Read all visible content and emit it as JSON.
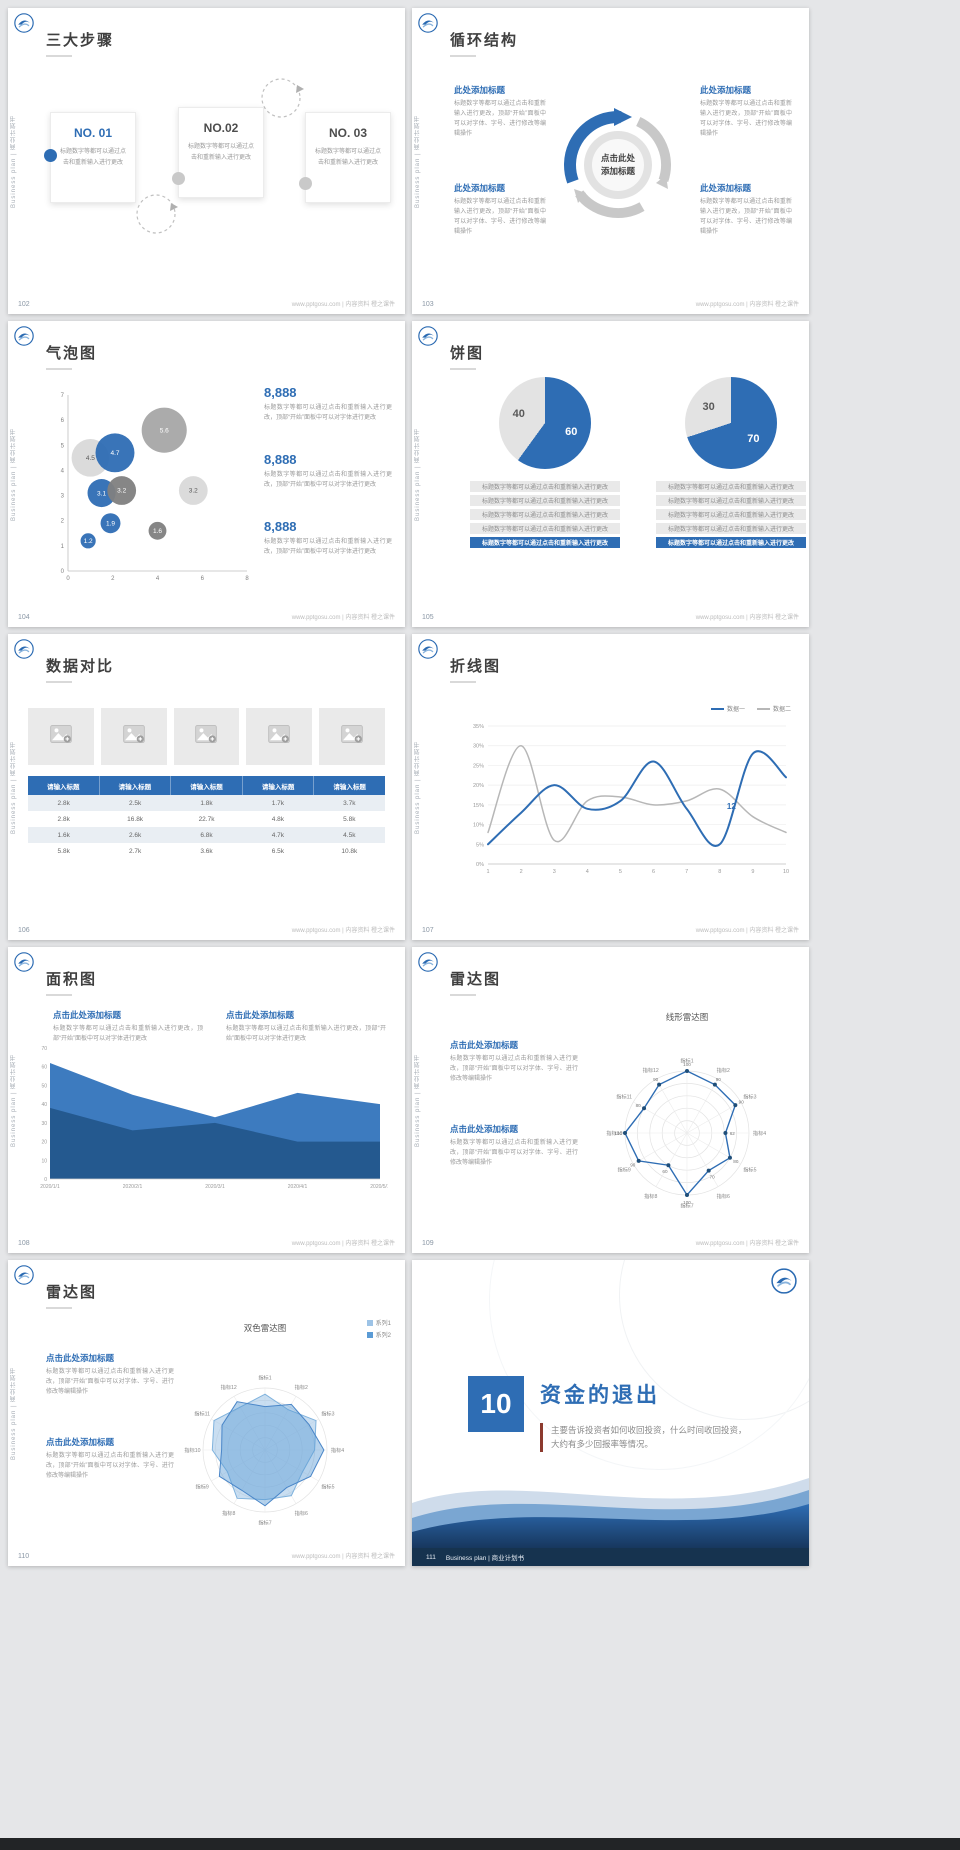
{
  "page": {
    "background": "#e5e6e8",
    "accent": "#2e6db4"
  },
  "common": {
    "side_text": "Business plan | 商业计划书",
    "footer_site": "www.pptgosu.com | 内容资料 橙之课件",
    "filler_short": "标题数字等都可以通过点击和重新输入进行更改",
    "filler_mid": "标题数字等都可以通过点击和重新输入进行更改，顶部“开始”面板中可以对字体进行更改",
    "filler_long": "标题数字等都可以通过点击和重新输入进行更改，顶部“开始”面板中可以对字体、字号、进行修改等编辑操作",
    "click_heading": "点击此处添加标题",
    "add_heading": "此处添加标题",
    "center_line1": "点击此处",
    "center_line2": "添加标题"
  },
  "slides": {
    "s102": {
      "num": "102",
      "title": "三大步骤",
      "steps": [
        "NO. 01",
        "NO.02",
        "NO. 03"
      ]
    },
    "s103": {
      "num": "103",
      "title": "循环结构"
    },
    "s104": {
      "num": "104",
      "title": "气泡图",
      "values": [
        "8,888",
        "8,888",
        "8,888"
      ]
    },
    "s105": {
      "num": "105",
      "title": "饼图"
    },
    "s106": {
      "num": "106",
      "title": "数据对比"
    },
    "s107": {
      "num": "107",
      "title": "折线图"
    },
    "s108": {
      "num": "108",
      "title": "面积图"
    },
    "s109": {
      "num": "109",
      "title": "雷达图",
      "chart_title": "线形雷达图"
    },
    "s110": {
      "num": "110",
      "title": "雷达图",
      "chart_title": "双色雷达图"
    },
    "s111": {
      "num": "111",
      "title_number": "10",
      "title": "资金的退出",
      "body": "主要告诉投资者如何收回投资，什么时间收回投资，大约有多少回报率等情况。",
      "footer": "Business plan | 商业计划书"
    }
  },
  "chart_data": {
    "bubble": {
      "type": "scatter",
      "xlim": [
        0,
        8
      ],
      "ylim": [
        0,
        7
      ],
      "xticks": [
        0,
        2,
        4,
        6,
        8
      ],
      "yticks": [
        0,
        1,
        2,
        3,
        4,
        5,
        6,
        7
      ],
      "points": [
        {
          "x": 1.0,
          "y": 4.5,
          "value": 4.5,
          "color": "#d9d9d9",
          "label_color": "#595959"
        },
        {
          "x": 2.1,
          "y": 4.7,
          "value": 4.7,
          "color": "#2e6db4",
          "label_color": "#ffffff"
        },
        {
          "x": 4.3,
          "y": 5.6,
          "value": 5.6,
          "color": "#a6a6a6",
          "label_color": "#ffffff"
        },
        {
          "x": 1.5,
          "y": 3.1,
          "value": 3.1,
          "color": "#2e6db4",
          "label_color": "#ffffff"
        },
        {
          "x": 2.4,
          "y": 3.2,
          "value": 3.2,
          "color": "#7f7f7f",
          "label_color": "#ffffff"
        },
        {
          "x": 5.6,
          "y": 3.2,
          "value": 3.2,
          "color": "#d9d9d9",
          "label_color": "#595959"
        },
        {
          "x": 1.9,
          "y": 1.9,
          "value": 1.9,
          "color": "#2e6db4",
          "label_color": "#ffffff"
        },
        {
          "x": 0.9,
          "y": 1.2,
          "value": 1.2,
          "color": "#2e6db4",
          "label_color": "#ffffff"
        },
        {
          "x": 4.0,
          "y": 1.6,
          "value": 1.6,
          "color": "#7f7f7f",
          "label_color": "#ffffff"
        }
      ]
    },
    "pies": [
      {
        "type": "pie",
        "slices": [
          {
            "label": "60",
            "value": 60,
            "color": "#2e6db4"
          },
          {
            "label": "40",
            "value": 40,
            "color": "#e3e3e3"
          }
        ]
      },
      {
        "type": "pie",
        "slices": [
          {
            "label": "70",
            "value": 70,
            "color": "#2e6db4"
          },
          {
            "label": "30",
            "value": 30,
            "color": "#e3e3e3"
          }
        ]
      }
    ],
    "pie_rows": {
      "text": "标题数字等都可以通过点击和重新输入进行更改",
      "styles": [
        "gray",
        "gray",
        "gray",
        "gray",
        "blue"
      ]
    },
    "table": {
      "type": "table",
      "headers": [
        "请输入标题",
        "请输入标题",
        "请输入标题",
        "请输入标题",
        "请输入标题"
      ],
      "rows": [
        [
          "2.8k",
          "2.5k",
          "1.8k",
          "1.7k",
          "3.7k"
        ],
        [
          "2.8k",
          "16.8k",
          "22.7k",
          "4.8k",
          "5.8k"
        ],
        [
          "1.6k",
          "2.6k",
          "6.8k",
          "4.7k",
          "4.5k"
        ],
        [
          "5.8k",
          "2.7k",
          "3.6k",
          "6.5k",
          "10.8k"
        ]
      ]
    },
    "line": {
      "type": "line",
      "x": [
        1,
        2,
        3,
        4,
        5,
        6,
        7,
        8,
        9,
        10
      ],
      "ylim": [
        0,
        35
      ],
      "yticks": [
        "0%",
        "5%",
        "10%",
        "15%",
        "20%",
        "25%",
        "30%",
        "35%"
      ],
      "series": [
        {
          "name": "数据一",
          "color": "#2e6db4",
          "width": 2,
          "values": [
            5,
            13,
            20,
            14,
            16,
            26,
            14,
            5,
            28,
            22
          ]
        },
        {
          "name": "数据二",
          "color": "#b7b7b7",
          "width": 1.5,
          "values": [
            8,
            30,
            6,
            16,
            17,
            15,
            16,
            19,
            12,
            8
          ]
        }
      ],
      "annotation": {
        "x": 8.35,
        "y": 14,
        "text": "12",
        "color": "#2e6db4"
      }
    },
    "area": {
      "type": "area",
      "categories": [
        "2020/1/1",
        "2020/2/1",
        "2020/3/1",
        "2020/4/1",
        "2020/5/1"
      ],
      "ylim": [
        0,
        70
      ],
      "yticks": [
        0,
        10,
        20,
        30,
        40,
        50,
        60,
        70
      ],
      "series": [
        {
          "color": "#24598f",
          "values": [
            38,
            26,
            30,
            20,
            20
          ]
        },
        {
          "color": "#3d7bbf",
          "values": [
            62,
            45,
            33,
            46,
            40
          ]
        }
      ]
    },
    "radar_line": {
      "type": "radar",
      "max": 100,
      "labels": [
        "指标1",
        "指标2",
        "指标3",
        "指标4",
        "指标5",
        "指标6",
        "指标7",
        "指标8",
        "指标9",
        "指标10",
        "指标11",
        "指标12"
      ],
      "series": [
        {
          "color": "#2e6db4",
          "dots": true,
          "show_values": true,
          "values": [
            100,
            90,
            90,
            62,
            80,
            70,
            100,
            60,
            90,
            100,
            80,
            90
          ]
        }
      ]
    },
    "radar_fill": {
      "type": "radar",
      "max": 100,
      "labels": [
        "指标1",
        "指标2",
        "指标3",
        "指标4",
        "指标5",
        "指标6",
        "指标7",
        "指标8",
        "指标9",
        "指标10",
        "指标11",
        "指标12"
      ],
      "legend": [
        {
          "name": "系列1",
          "color": "#9dc3e6"
        },
        {
          "name": "系列2",
          "color": "#5b9bd5"
        }
      ],
      "series": [
        {
          "color": "#7fb2dd",
          "fill": "rgba(157,195,230,0.55)",
          "values": [
            90,
            75,
            95,
            80,
            70,
            85,
            80,
            90,
            70,
            85,
            95,
            80
          ]
        },
        {
          "color": "#4a86c8",
          "fill": "rgba(91,155,213,0.45)",
          "values": [
            70,
            85,
            82,
            95,
            85,
            70,
            90,
            75,
            85,
            70,
            80,
            90
          ]
        }
      ]
    }
  }
}
